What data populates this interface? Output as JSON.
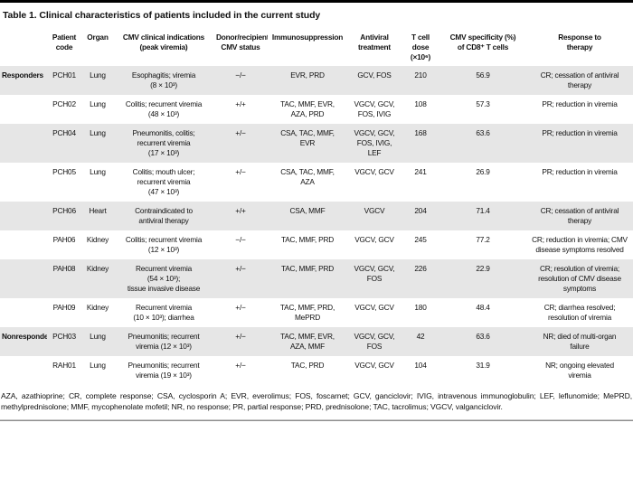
{
  "title": "Table 1. Clinical characteristics of patients included in the current study",
  "colors": {
    "stripe": "#e6e6e6",
    "top_rule": "#000000",
    "bottom_rule": "#8c8c8c"
  },
  "table": {
    "headers": [
      "",
      "Patient\ncode",
      "Organ",
      "CMV clinical indications\n(peak viremia)",
      "Donor/recipient\nCMV status",
      "Immunosuppression",
      "Antiviral\ntreatment",
      "T cell dose\n(×10⁶)",
      "CMV specificity (%)\nof CD8⁺ T cells",
      "Response to\ntherapy"
    ],
    "rows": [
      {
        "group": "Responders",
        "patient": "PCH01",
        "organ": "Lung",
        "indications": "Esophagitis; viremia\n(8 × 10³)",
        "donor_recipient_cmv_status": "−/−",
        "immunosuppression": "EVR, PRD",
        "antiviral": "GCV, FOS",
        "t_cell_dose": "210",
        "cmv_specificity": "56.9",
        "response": "CR; cessation of antiviral\ntherapy"
      },
      {
        "group": "",
        "patient": "PCH02",
        "organ": "Lung",
        "indications": "Colitis; recurrent viremia\n(48 × 10³)",
        "donor_recipient_cmv_status": "+/+",
        "immunosuppression": "TAC, MMF, EVR,\nAZA, PRD",
        "antiviral": "VGCV, GCV,\nFOS, IVIG",
        "t_cell_dose": "108",
        "cmv_specificity": "57.3",
        "response": "PR; reduction in viremia"
      },
      {
        "group": "",
        "patient": "PCH04",
        "organ": "Lung",
        "indications": "Pneumonitis, colitis;\nrecurrent viremia\n(17 × 10³)",
        "donor_recipient_cmv_status": "+/−",
        "immunosuppression": "CSA, TAC, MMF,\nEVR",
        "antiviral": "VGCV, GCV,\nFOS, IVIG, LEF",
        "t_cell_dose": "168",
        "cmv_specificity": "63.6",
        "response": "PR; reduction in viremia"
      },
      {
        "group": "",
        "patient": "PCH05",
        "organ": "Lung",
        "indications": "Colitis; mouth ulcer;\nrecurrent viremia\n(47 × 10³)",
        "donor_recipient_cmv_status": "+/−",
        "immunosuppression": "CSA, TAC, MMF,\nAZA",
        "antiviral": "VGCV, GCV",
        "t_cell_dose": "241",
        "cmv_specificity": "26.9",
        "response": "PR; reduction in viremia"
      },
      {
        "group": "",
        "patient": "PCH06",
        "organ": "Heart",
        "indications": "Contraindicated to\nantiviral therapy",
        "donor_recipient_cmv_status": "+/+",
        "immunosuppression": "CSA, MMF",
        "antiviral": "VGCV",
        "t_cell_dose": "204",
        "cmv_specificity": "71.4",
        "response": "CR; cessation of antiviral\ntherapy"
      },
      {
        "group": "",
        "patient": "PAH06",
        "organ": "Kidney",
        "indications": "Colitis; recurrent viremia\n(12 × 10³)",
        "donor_recipient_cmv_status": "−/−",
        "immunosuppression": "TAC, MMF, PRD",
        "antiviral": "VGCV, GCV",
        "t_cell_dose": "245",
        "cmv_specificity": "77.2",
        "response": "CR; reduction in viremia; CMV\ndisease symptoms resolved"
      },
      {
        "group": "",
        "patient": "PAH08",
        "organ": "Kidney",
        "indications": "Recurrent viremia\n(54 × 10³);\ntissue invasive disease",
        "donor_recipient_cmv_status": "+/−",
        "immunosuppression": "TAC, MMF, PRD",
        "antiviral": "VGCV, GCV,\nFOS",
        "t_cell_dose": "226",
        "cmv_specificity": "22.9",
        "response": "CR; resolution of viremia;\nresolution of CMV disease\nsymptoms"
      },
      {
        "group": "",
        "patient": "PAH09",
        "organ": "Kidney",
        "indications": "Recurrent viremia\n(10 × 10³); diarrhea",
        "donor_recipient_cmv_status": "+/−",
        "immunosuppression": "TAC, MMF, PRD,\nMePRD",
        "antiviral": "VGCV, GCV",
        "t_cell_dose": "180",
        "cmv_specificity": "48.4",
        "response": "CR; diarrhea resolved;\nresolution of viremia"
      },
      {
        "group": "Nonresponders",
        "patient": "PCH03",
        "organ": "Lung",
        "indications": "Pneumonitis; recurrent\nviremia (12 × 10³)",
        "donor_recipient_cmv_status": "+/−",
        "immunosuppression": "TAC, MMF, EVR,\nAZA, MMF",
        "antiviral": "VGCV, GCV,\nFOS",
        "t_cell_dose": "42",
        "cmv_specificity": "63.6",
        "response": "NR; died of multi-organ\nfailure"
      },
      {
        "group": "",
        "patient": "RAH01",
        "organ": "Lung",
        "indications": "Pneumonitis; recurrent\nviremia (19 × 10³)",
        "donor_recipient_cmv_status": "+/−",
        "immunosuppression": "TAC, PRD",
        "antiviral": "VGCV, GCV",
        "t_cell_dose": "104",
        "cmv_specificity": "31.9",
        "response": "NR; ongoing elevated\nviremia"
      }
    ]
  },
  "footnote": "AZA, azathioprine; CR, complete response; CSA, cyclosporin A; EVR, everolimus; FOS, foscarnet; GCV, ganciclovir; IVIG, intravenous immunoglobulin; LEF, leflunomide; MePRD, methylprednisolone; MMF, mycophenolate mofetil; NR, no response; PR, partial response; PRD, prednisolone; TAC, tacrolimus; VGCV, valganciclovir."
}
